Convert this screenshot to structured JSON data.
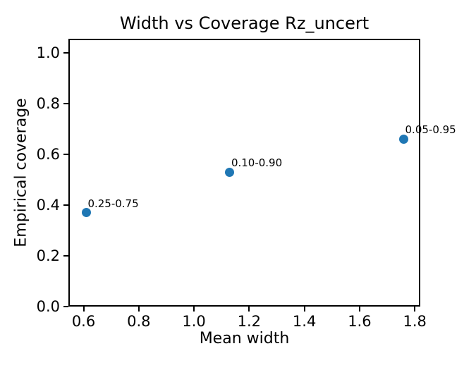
{
  "chart_data": {
    "type": "scatter",
    "title": "Width vs Coverage Rz_uncert",
    "xlabel": "Mean width",
    "ylabel": "Empirical coverage",
    "xlim": [
      0.545,
      1.82
    ],
    "ylim": [
      0.0,
      1.055
    ],
    "xticks": {
      "values": [
        0.6,
        0.8,
        1.0,
        1.2,
        1.4,
        1.6,
        1.8
      ],
      "labels": [
        "0.6",
        "0.8",
        "1.0",
        "1.2",
        "1.4",
        "1.6",
        "1.8"
      ]
    },
    "yticks": {
      "values": [
        0.0,
        0.2,
        0.4,
        0.6,
        0.8,
        1.0
      ],
      "labels": [
        "0.0",
        "0.2",
        "0.4",
        "0.6",
        "0.8",
        "1.0"
      ]
    },
    "grid": false,
    "legend_position": "none",
    "marker_color": "#1f77b4",
    "axis_color": "#000000",
    "background_color": "#ffffff",
    "points": [
      {
        "x": 0.61,
        "y": 0.37,
        "label": "0.25-0.75"
      },
      {
        "x": 1.13,
        "y": 0.53,
        "label": "0.10-0.90"
      },
      {
        "x": 1.76,
        "y": 0.66,
        "label": "0.05-0.95"
      }
    ]
  }
}
